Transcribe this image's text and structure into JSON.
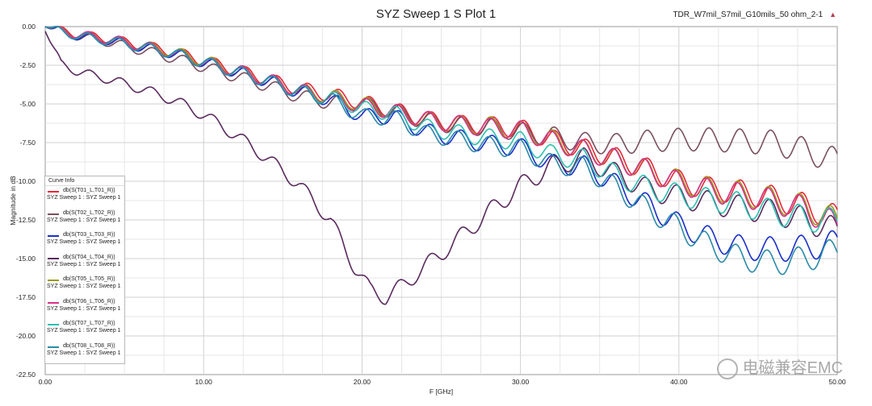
{
  "chart_data": {
    "type": "line",
    "title": "SYZ Sweep 1 S Plot 1",
    "top_right_label": "TDR_W7mil_S7mil_G10mils_50 ohm_2-1",
    "xlabel": "F [GHz]",
    "ylabel": "Magnitude in dB",
    "xlim": [
      0,
      50
    ],
    "ylim": [
      -22.5,
      0
    ],
    "xticks": [
      "0.00",
      "10.00",
      "20.00",
      "30.00",
      "40.00",
      "50.00"
    ],
    "yticks": [
      "0.00",
      "-2.50",
      "-5.00",
      "-7.50",
      "-10.00",
      "-12.50",
      "-15.00",
      "-17.50",
      "-20.00",
      "-22.50"
    ],
    "grid": true,
    "legend": {
      "title": "Curve Info",
      "placement": "bottom-left",
      "subtitle": "SYZ Sweep 1 : SYZ Sweep 1"
    },
    "series": [
      {
        "name": "db(S(T01_L,T01_R))",
        "color": "#e8283c",
        "anchors": [
          [
            0,
            0
          ],
          [
            2,
            -0.5
          ],
          [
            4,
            -0.8
          ],
          [
            6,
            -1.2
          ],
          [
            8,
            -1.6
          ],
          [
            10,
            -2.2
          ],
          [
            12,
            -2.8
          ],
          [
            14,
            -3.4
          ],
          [
            16,
            -4.0
          ],
          [
            18,
            -4.4
          ],
          [
            20,
            -4.9
          ],
          [
            22,
            -5.4
          ],
          [
            24,
            -6.0
          ],
          [
            26,
            -6.3
          ],
          [
            28,
            -6.4
          ],
          [
            30,
            -6.6
          ],
          [
            32,
            -7.3
          ],
          [
            34,
            -7.9
          ],
          [
            36,
            -8.5
          ],
          [
            38,
            -9.2
          ],
          [
            40,
            -10.0
          ],
          [
            42,
            -10.5
          ],
          [
            44,
            -10.7
          ],
          [
            46,
            -11.1
          ],
          [
            48,
            -11.6
          ],
          [
            50,
            -12.4
          ]
        ]
      },
      {
        "name": "db(S(T02_L,T02_R))",
        "color": "#7a5060",
        "anchors": [
          [
            0,
            0
          ],
          [
            2,
            -0.6
          ],
          [
            4,
            -1.0
          ],
          [
            6,
            -1.5
          ],
          [
            8,
            -2.0
          ],
          [
            10,
            -2.6
          ],
          [
            12,
            -3.2
          ],
          [
            14,
            -3.8
          ],
          [
            16,
            -4.5
          ],
          [
            18,
            -4.9
          ],
          [
            20,
            -5.0
          ],
          [
            22,
            -5.5
          ],
          [
            24,
            -6.1
          ],
          [
            26,
            -6.4
          ],
          [
            28,
            -6.5
          ],
          [
            30,
            -6.8
          ],
          [
            32,
            -7.1
          ],
          [
            34,
            -7.5
          ],
          [
            36,
            -7.6
          ],
          [
            38,
            -7.4
          ],
          [
            40,
            -7.3
          ],
          [
            42,
            -7.3
          ],
          [
            44,
            -7.4
          ],
          [
            46,
            -7.5
          ],
          [
            48,
            -8.0
          ],
          [
            50,
            -8.7
          ]
        ]
      },
      {
        "name": "db(S(T03_L,T03_R))",
        "color": "#1a2fc8",
        "anchors": [
          [
            0,
            0
          ],
          [
            2,
            -0.6
          ],
          [
            4,
            -0.9
          ],
          [
            6,
            -1.3
          ],
          [
            8,
            -1.7
          ],
          [
            10,
            -2.3
          ],
          [
            12,
            -2.9
          ],
          [
            14,
            -3.5
          ],
          [
            16,
            -4.2
          ],
          [
            18,
            -4.7
          ],
          [
            20,
            -5.8
          ],
          [
            22,
            -5.8
          ],
          [
            24,
            -6.8
          ],
          [
            26,
            -7.2
          ],
          [
            28,
            -7.6
          ],
          [
            30,
            -7.8
          ],
          [
            32,
            -8.9
          ],
          [
            34,
            -9.0
          ],
          [
            36,
            -10.2
          ],
          [
            38,
            -11.5
          ],
          [
            40,
            -12.8
          ],
          [
            42,
            -13.7
          ],
          [
            44,
            -14.3
          ],
          [
            46,
            -14.4
          ],
          [
            48,
            -14.3
          ],
          [
            50,
            -14.0
          ]
        ]
      },
      {
        "name": "db(S(T04_L,T04_R))",
        "color": "#5a2a5e",
        "anchors": [
          [
            0,
            -0.3
          ],
          [
            1,
            -2.4
          ],
          [
            2,
            -2.9
          ],
          [
            4,
            -3.4
          ],
          [
            6,
            -4.0
          ],
          [
            8,
            -4.7
          ],
          [
            10,
            -5.7
          ],
          [
            12,
            -7.0
          ],
          [
            14,
            -8.5
          ],
          [
            16,
            -10.2
          ],
          [
            18,
            -12.5
          ],
          [
            19.5,
            -15.5
          ],
          [
            20.5,
            -17.0
          ],
          [
            21.5,
            -17.5
          ],
          [
            22.5,
            -16.8
          ],
          [
            24,
            -15.5
          ],
          [
            26,
            -13.8
          ],
          [
            28,
            -12.0
          ],
          [
            30,
            -10.3
          ],
          [
            32,
            -9.0
          ],
          [
            34,
            -8.5
          ],
          [
            36,
            -9.5
          ],
          [
            38,
            -10.5
          ],
          [
            40,
            -11.0
          ],
          [
            42,
            -11.4
          ],
          [
            44,
            -11.7
          ],
          [
            46,
            -12.0
          ],
          [
            48,
            -12.5
          ],
          [
            50,
            -13.2
          ]
        ]
      },
      {
        "name": "db(S(T05_L,T05_R))",
        "color": "#9a9a18",
        "anchors": [
          [
            0,
            0
          ],
          [
            2,
            -0.5
          ],
          [
            4,
            -0.8
          ],
          [
            6,
            -1.2
          ],
          [
            8,
            -1.6
          ],
          [
            10,
            -2.2
          ],
          [
            12,
            -2.8
          ],
          [
            14,
            -3.4
          ],
          [
            16,
            -4.1
          ],
          [
            18,
            -4.5
          ],
          [
            20,
            -5.0
          ],
          [
            22,
            -5.5
          ],
          [
            24,
            -6.0
          ],
          [
            26,
            -6.3
          ],
          [
            28,
            -6.4
          ],
          [
            30,
            -6.7
          ],
          [
            32,
            -7.3
          ],
          [
            34,
            -8.0
          ],
          [
            36,
            -8.6
          ],
          [
            38,
            -9.3
          ],
          [
            40,
            -10.0
          ],
          [
            42,
            -10.5
          ],
          [
            44,
            -10.8
          ],
          [
            46,
            -11.2
          ],
          [
            48,
            -11.7
          ],
          [
            50,
            -12.6
          ]
        ]
      },
      {
        "name": "db(S(T06_L,T06_R))",
        "color": "#d8308c",
        "anchors": [
          [
            0,
            0
          ],
          [
            2,
            -0.5
          ],
          [
            4,
            -0.8
          ],
          [
            6,
            -1.2
          ],
          [
            8,
            -1.7
          ],
          [
            10,
            -2.3
          ],
          [
            12,
            -2.8
          ],
          [
            14,
            -3.4
          ],
          [
            16,
            -4.1
          ],
          [
            18,
            -4.6
          ],
          [
            20,
            -5.1
          ],
          [
            22,
            -5.5
          ],
          [
            24,
            -6.0
          ],
          [
            26,
            -6.3
          ],
          [
            28,
            -6.5
          ],
          [
            30,
            -6.7
          ],
          [
            32,
            -7.4
          ],
          [
            34,
            -8.0
          ],
          [
            36,
            -8.6
          ],
          [
            38,
            -9.3
          ],
          [
            40,
            -10.1
          ],
          [
            42,
            -10.6
          ],
          [
            44,
            -10.9
          ],
          [
            46,
            -11.3
          ],
          [
            48,
            -11.8
          ],
          [
            50,
            -12.9
          ]
        ]
      },
      {
        "name": "db(S(T07_L,T07_R))",
        "color": "#2cc0b0",
        "anchors": [
          [
            0,
            0
          ],
          [
            2,
            -0.6
          ],
          [
            4,
            -0.9
          ],
          [
            6,
            -1.3
          ],
          [
            8,
            -1.7
          ],
          [
            10,
            -2.3
          ],
          [
            12,
            -2.9
          ],
          [
            14,
            -3.5
          ],
          [
            16,
            -4.2
          ],
          [
            18,
            -4.6
          ],
          [
            20,
            -5.3
          ],
          [
            22,
            -5.6
          ],
          [
            24,
            -6.5
          ],
          [
            26,
            -6.9
          ],
          [
            28,
            -7.2
          ],
          [
            30,
            -7.4
          ],
          [
            32,
            -8.3
          ],
          [
            34,
            -8.6
          ],
          [
            36,
            -9.6
          ],
          [
            38,
            -10.4
          ],
          [
            40,
            -10.9
          ],
          [
            42,
            -11.2
          ],
          [
            44,
            -11.5
          ],
          [
            46,
            -12.0
          ],
          [
            48,
            -12.4
          ],
          [
            50,
            -12.6
          ]
        ]
      },
      {
        "name": "db(S(T08_L,T08_R))",
        "color": "#2a8aa8",
        "anchors": [
          [
            0,
            0
          ],
          [
            2,
            -0.6
          ],
          [
            4,
            -0.9
          ],
          [
            6,
            -1.3
          ],
          [
            8,
            -1.7
          ],
          [
            10,
            -2.3
          ],
          [
            12,
            -2.9
          ],
          [
            14,
            -3.5
          ],
          [
            16,
            -4.2
          ],
          [
            18,
            -4.7
          ],
          [
            20,
            -5.8
          ],
          [
            22,
            -5.9
          ],
          [
            24,
            -6.9
          ],
          [
            26,
            -7.3
          ],
          [
            28,
            -7.7
          ],
          [
            30,
            -7.9
          ],
          [
            32,
            -8.9
          ],
          [
            34,
            -9.1
          ],
          [
            36,
            -10.4
          ],
          [
            38,
            -11.8
          ],
          [
            40,
            -13.0
          ],
          [
            42,
            -14.2
          ],
          [
            44,
            -15.0
          ],
          [
            46,
            -15.3
          ],
          [
            48,
            -15.0
          ],
          [
            50,
            -14.5
          ]
        ]
      }
    ]
  },
  "watermark": "电磁兼容EMC"
}
